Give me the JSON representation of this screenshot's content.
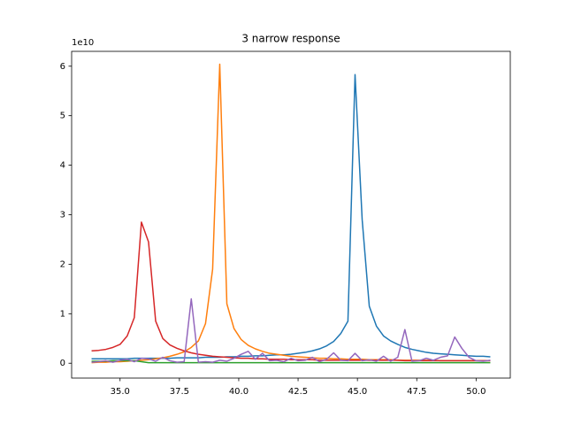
{
  "chart_data": {
    "type": "line",
    "title": "3 narrow response",
    "y_offset_label": "1e10",
    "x": [
      33.8,
      34.1,
      34.4,
      34.7,
      35.0,
      35.3,
      35.6,
      35.9,
      36.2,
      36.5,
      36.8,
      37.1,
      37.4,
      37.7,
      38.0,
      38.3,
      38.6,
      38.9,
      39.2,
      39.5,
      39.8,
      40.1,
      40.4,
      40.7,
      41.0,
      41.3,
      41.6,
      41.9,
      42.2,
      42.5,
      42.8,
      43.1,
      43.4,
      43.7,
      44.0,
      44.3,
      44.6,
      44.9,
      45.2,
      45.5,
      45.8,
      46.1,
      46.4,
      46.7,
      47.0,
      47.3,
      47.6,
      47.9,
      48.2,
      48.5,
      48.8,
      49.1,
      49.4,
      49.7,
      50.0,
      50.3,
      50.6
    ],
    "series": [
      {
        "color": "#1f77b4",
        "values": [
          0.09,
          0.09,
          0.09,
          0.09,
          0.09,
          0.09,
          0.1,
          0.1,
          0.1,
          0.1,
          0.1,
          0.1,
          0.11,
          0.11,
          0.11,
          0.11,
          0.12,
          0.12,
          0.12,
          0.13,
          0.13,
          0.14,
          0.14,
          0.15,
          0.15,
          0.16,
          0.17,
          0.17,
          0.18,
          0.2,
          0.22,
          0.25,
          0.29,
          0.35,
          0.44,
          0.6,
          0.85,
          5.83,
          2.9,
          1.15,
          0.75,
          0.55,
          0.45,
          0.38,
          0.32,
          0.28,
          0.25,
          0.22,
          0.2,
          0.19,
          0.18,
          0.17,
          0.16,
          0.15,
          0.14,
          0.14,
          0.13
        ]
      },
      {
        "color": "#ff7f0e",
        "values": [
          0.01,
          0.02,
          0.02,
          0.03,
          0.03,
          0.04,
          0.05,
          0.06,
          0.07,
          0.09,
          0.11,
          0.14,
          0.18,
          0.23,
          0.32,
          0.45,
          0.8,
          1.9,
          6.04,
          1.2,
          0.7,
          0.48,
          0.36,
          0.29,
          0.24,
          0.2,
          0.18,
          0.16,
          0.14,
          0.13,
          0.12,
          0.11,
          0.1,
          0.1,
          0.09,
          0.09,
          0.08,
          0.08,
          0.08,
          0.07,
          0.07,
          0.07,
          0.07,
          0.06,
          0.06,
          0.06,
          0.06,
          0.06,
          0.06,
          0.05,
          0.05,
          0.05,
          0.05,
          0.05,
          0.05,
          0.05,
          0.05
        ]
      },
      {
        "color": "#2ca02c",
        "values": [
          0.04,
          0.04,
          0.04,
          0.05,
          0.05,
          0.05,
          0.05,
          0.03,
          0.01,
          0.01,
          0.01,
          0.01,
          0.01,
          0.01,
          0.01,
          0.01,
          0.01,
          0.01,
          0.01,
          0.01,
          0.01,
          0.01,
          0.01,
          0.01,
          0.01,
          0.01,
          0.01,
          0.01,
          0.01,
          0.01,
          0.01,
          0.01,
          0.01,
          0.01,
          0.01,
          0.01,
          0.01,
          0.01,
          0.01,
          0.01,
          0.01,
          0.01,
          0.01,
          0.01,
          0.01,
          0.01,
          0.01,
          0.01,
          0.01,
          0.01,
          0.01,
          0.01,
          0.01,
          0.01,
          0.01,
          0.01,
          0.01
        ]
      },
      {
        "color": "#d62728",
        "values": [
          0.25,
          0.26,
          0.28,
          0.32,
          0.38,
          0.55,
          0.92,
          2.85,
          2.45,
          0.85,
          0.5,
          0.37,
          0.3,
          0.25,
          0.21,
          0.18,
          0.16,
          0.14,
          0.13,
          0.12,
          0.11,
          0.1,
          0.1,
          0.09,
          0.09,
          0.08,
          0.08,
          0.08,
          0.07,
          0.07,
          0.07,
          0.07,
          0.06,
          0.06,
          0.06,
          0.06,
          0.06,
          0.06,
          0.06,
          0.06,
          0.06,
          0.06,
          0.06,
          0.06,
          0.05,
          0.05,
          0.05,
          0.05,
          0.05,
          0.05,
          0.05,
          0.05,
          0.05,
          0.05,
          0.05,
          0.05,
          0.05
        ]
      },
      {
        "color": "#9467bd",
        "values": [
          0.02,
          0.03,
          0.05,
          0.02,
          0.06,
          0.08,
          0.03,
          0.1,
          0.09,
          0.04,
          0.12,
          0.05,
          0.02,
          0.03,
          1.3,
          0.02,
          0.03,
          0.02,
          0.06,
          0.04,
          0.1,
          0.18,
          0.24,
          0.08,
          0.2,
          0.05,
          0.06,
          0.03,
          0.1,
          0.05,
          0.06,
          0.12,
          0.03,
          0.08,
          0.21,
          0.06,
          0.05,
          0.2,
          0.05,
          0.07,
          0.04,
          0.14,
          0.04,
          0.12,
          0.68,
          0.04,
          0.05,
          0.1,
          0.06,
          0.12,
          0.15,
          0.53,
          0.3,
          0.12,
          0.05,
          0.04,
          0.06
        ]
      }
    ],
    "xlim": [
      32.96,
      51.44
    ],
    "ylim": [
      -0.3,
      6.3
    ],
    "xticks": [
      {
        "value": 35,
        "label": "35.0"
      },
      {
        "value": 37.5,
        "label": "37.5"
      },
      {
        "value": 40,
        "label": "40.0"
      },
      {
        "value": 42.5,
        "label": "42.5"
      },
      {
        "value": 45,
        "label": "45.0"
      },
      {
        "value": 47.5,
        "label": "47.5"
      },
      {
        "value": 50,
        "label": "50.0"
      }
    ],
    "yticks": [
      0,
      1,
      2,
      3,
      4,
      5,
      6
    ]
  }
}
